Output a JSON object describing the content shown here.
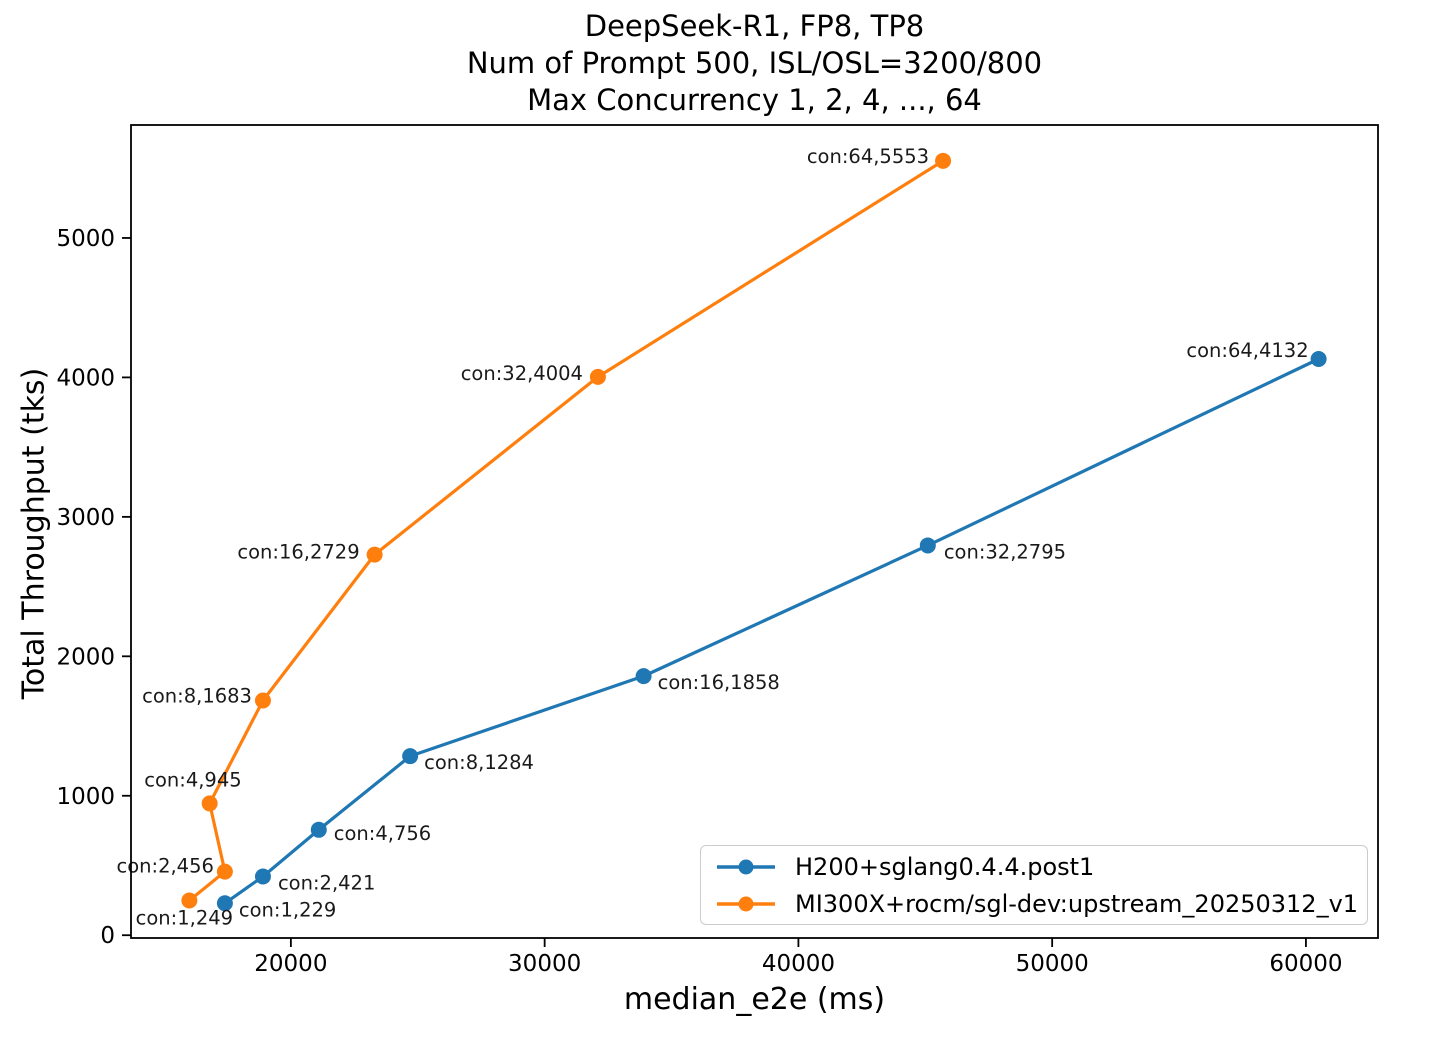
{
  "chart_data": {
    "type": "line",
    "title_lines": [
      "DeepSeek-R1, FP8, TP8",
      "Num of Prompt 500, ISL/OSL=3200/800",
      "Max Concurrency 1, 2, 4, ..., 64"
    ],
    "xlabel": "median_e2e (ms)",
    "ylabel": "Total Throughput (tks)",
    "xlim": [
      13700,
      62840
    ],
    "ylim": [
      -20,
      5810
    ],
    "xticks": [
      20000,
      30000,
      40000,
      50000,
      60000
    ],
    "yticks": [
      0,
      1000,
      2000,
      3000,
      4000,
      5000
    ],
    "grid": false,
    "legend_position": "lower right",
    "axis_color": "#000000",
    "annotation_color": "#1a1a1a",
    "series": [
      {
        "name": "H200+sglang0.4.4.post1",
        "color": "#1f77b4",
        "points": [
          {
            "con": 1,
            "x": 17400,
            "y": 229,
            "label": "con:1,229",
            "anchor": "start",
            "dx": 14,
            "dy": 13
          },
          {
            "con": 2,
            "x": 18900,
            "y": 421,
            "label": "con:2,421",
            "anchor": "start",
            "dx": 15,
            "dy": 13
          },
          {
            "con": 4,
            "x": 21100,
            "y": 756,
            "label": "con:4,756",
            "anchor": "start",
            "dx": 15,
            "dy": 10
          },
          {
            "con": 8,
            "x": 24700,
            "y": 1284,
            "label": "con:8,1284",
            "anchor": "start",
            "dx": 14,
            "dy": 13
          },
          {
            "con": 16,
            "x": 33900,
            "y": 1858,
            "label": "con:16,1858",
            "anchor": "start",
            "dx": 14,
            "dy": 13
          },
          {
            "con": 32,
            "x": 45100,
            "y": 2795,
            "label": "con:32,2795",
            "anchor": "start",
            "dx": 16,
            "dy": 13
          },
          {
            "con": 64,
            "x": 60500,
            "y": 4132,
            "label": "con:64,4132",
            "anchor": "end",
            "dx": -10,
            "dy": -2
          }
        ]
      },
      {
        "name": "MI300X+rocm/sgl-dev:upstream_20250312_v1",
        "color": "#ff7f0e",
        "points": [
          {
            "con": 1,
            "x": 16000,
            "y": 249,
            "label": "con:1,249",
            "anchor": "middle",
            "dx": -5,
            "dy": 24
          },
          {
            "con": 2,
            "x": 17400,
            "y": 456,
            "label": "con:2,456",
            "anchor": "end",
            "dx": -11,
            "dy": 1
          },
          {
            "con": 4,
            "x": 16800,
            "y": 945,
            "label": "con:4,945",
            "anchor": "end",
            "dx": 32,
            "dy": -17
          },
          {
            "con": 8,
            "x": 18900,
            "y": 1683,
            "label": "con:8,1683",
            "anchor": "end",
            "dx": -11,
            "dy": 2
          },
          {
            "con": 16,
            "x": 23300,
            "y": 2729,
            "label": "con:16,2729",
            "anchor": "end",
            "dx": -15,
            "dy": 4
          },
          {
            "con": 32,
            "x": 32100,
            "y": 4004,
            "label": "con:32,4004",
            "anchor": "end",
            "dx": -15,
            "dy": 3
          },
          {
            "con": 64,
            "x": 45700,
            "y": 5553,
            "label": "con:64,5553",
            "anchor": "end",
            "dx": -14,
            "dy": 2
          }
        ]
      }
    ]
  }
}
